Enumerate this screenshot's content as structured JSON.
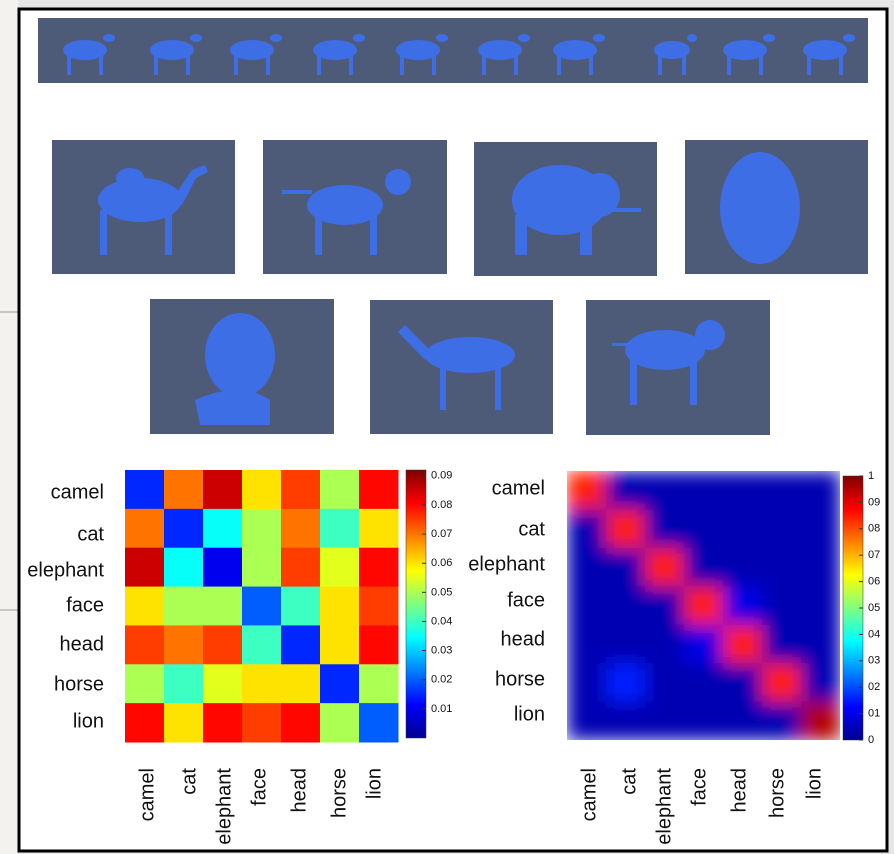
{
  "chart_data": [
    {
      "type": "heatmap",
      "rows": [
        "camel",
        "cat",
        "elephant",
        "face",
        "head",
        "horse",
        "lion"
      ],
      "columns": [
        "camel",
        "cat",
        "elephant",
        "face",
        "head",
        "horse",
        "lion"
      ],
      "values": [
        [
          0.015,
          0.07,
          0.085,
          0.06,
          0.075,
          0.05,
          0.08
        ],
        [
          0.07,
          0.015,
          0.035,
          0.05,
          0.07,
          0.04,
          0.06
        ],
        [
          0.085,
          0.035,
          0.01,
          0.05,
          0.075,
          0.055,
          0.08
        ],
        [
          0.06,
          0.05,
          0.05,
          0.02,
          0.04,
          0.06,
          0.075
        ],
        [
          0.075,
          0.07,
          0.075,
          0.04,
          0.015,
          0.06,
          0.08
        ],
        [
          0.05,
          0.04,
          0.055,
          0.06,
          0.06,
          0.015,
          0.05
        ],
        [
          0.08,
          0.06,
          0.08,
          0.075,
          0.08,
          0.05,
          0.02
        ]
      ],
      "colorbar_lim": [
        0,
        0.092
      ],
      "colorbar_ticks": [
        0.01,
        0.02,
        0.03,
        0.04,
        0.05,
        0.06,
        0.07,
        0.08,
        0.09
      ],
      "smooth": false
    },
    {
      "type": "heatmap",
      "rows": [
        "camel",
        "cat",
        "elephant",
        "face",
        "head",
        "horse",
        "lion"
      ],
      "columns": [
        "camel",
        "cat",
        "elephant",
        "face",
        "head",
        "horse",
        "lion"
      ],
      "values": [
        [
          0.85,
          0.05,
          0.05,
          0.05,
          0.05,
          0.05,
          0.05
        ],
        [
          0.05,
          0.85,
          0.05,
          0.05,
          0.05,
          0.05,
          0.05
        ],
        [
          0.05,
          0.05,
          0.85,
          0.05,
          0.05,
          0.05,
          0.05
        ],
        [
          0.05,
          0.05,
          0.05,
          0.85,
          0.1,
          0.05,
          0.05
        ],
        [
          0.05,
          0.05,
          0.05,
          0.1,
          0.85,
          0.05,
          0.05
        ],
        [
          0.05,
          0.15,
          0.05,
          0.05,
          0.05,
          0.85,
          0.05
        ],
        [
          0.05,
          0.05,
          0.05,
          0.05,
          0.05,
          0.05,
          0.95
        ]
      ],
      "colorbar_lim": [
        0,
        1
      ],
      "colorbar_ticks": [
        0,
        {
          "value": 0.1,
          "label": "01"
        },
        {
          "value": 0.2,
          "label": "02"
        },
        {
          "value": 0.3,
          "label": "03"
        },
        {
          "value": 0.4,
          "label": "04"
        },
        {
          "value": 0.5,
          "label": "05"
        },
        {
          "value": 0.6,
          "label": "06"
        },
        {
          "value": 0.7,
          "label": "07"
        },
        {
          "value": 0.8,
          "label": "08"
        },
        {
          "value": 0.9,
          "label": "09"
        },
        1
      ],
      "smooth": true
    }
  ]
}
